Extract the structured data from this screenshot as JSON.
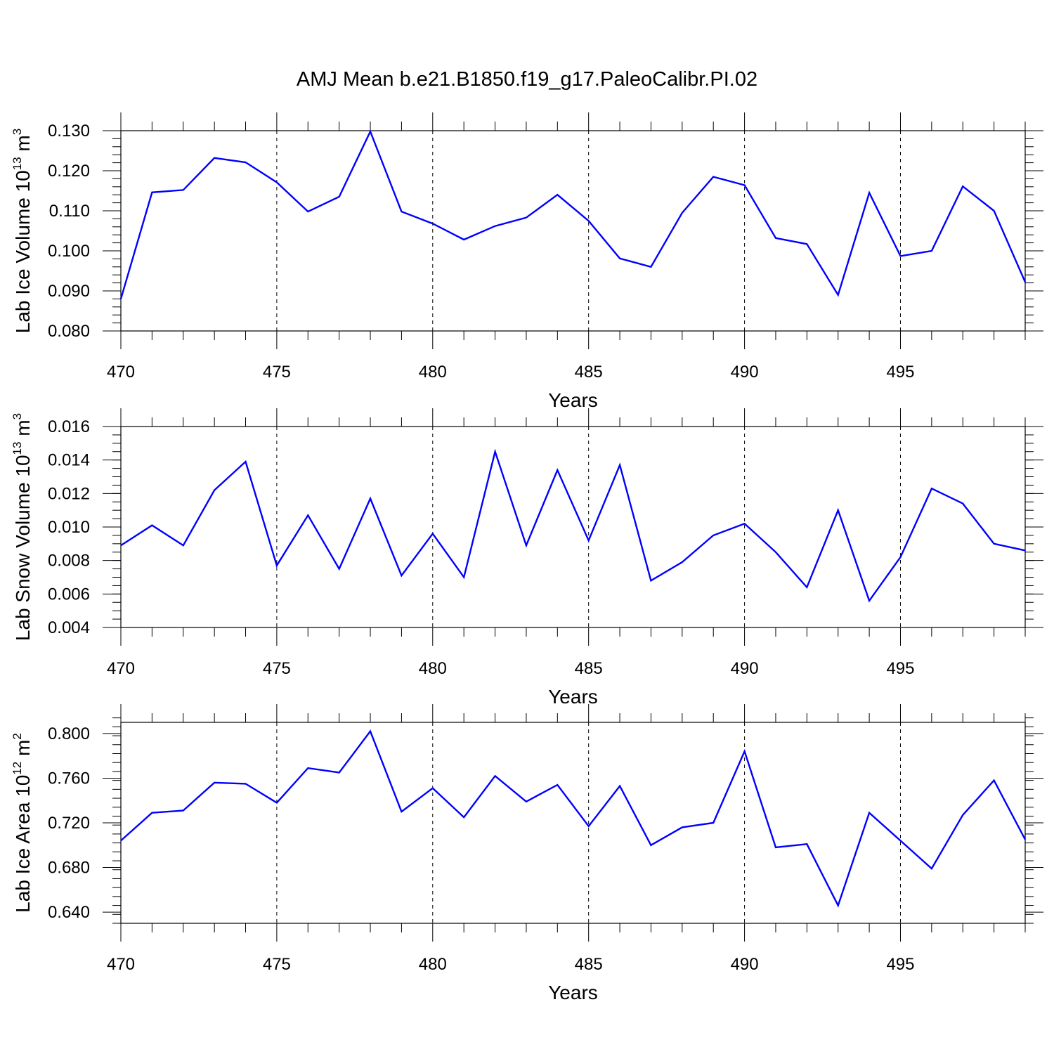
{
  "figure": {
    "title": "AMJ Mean b.e21.B1850.f19_g17.PaleoCalibr.PI.02"
  },
  "chart_data": [
    {
      "type": "line",
      "title": "AMJ Mean b.e21.B1850.f19_g17.PaleoCalibr.PI.02",
      "xlabel": "Years",
      "ylabel": {
        "main": "Lab Ice Volume 10",
        "exp": "13",
        "unit": " m",
        "unit_exp": "3"
      },
      "xlim": [
        470,
        499
      ],
      "ylim": [
        0.08,
        0.13
      ],
      "xticks": [
        470,
        475,
        480,
        485,
        490,
        495
      ],
      "xtick_labels": [
        "470",
        "475",
        "480",
        "485",
        "490",
        "495"
      ],
      "yticks": [
        0.08,
        0.09,
        0.1,
        0.11,
        0.12,
        0.13
      ],
      "ytick_labels": [
        "0.080",
        "0.090",
        "0.100",
        "0.110",
        "0.120",
        "0.130"
      ],
      "y_minor_step": 0.002,
      "line_color": "#0000ff",
      "grid": "vertical dashed at major x ticks",
      "x": [
        470,
        471,
        472,
        473,
        474,
        475,
        476,
        477,
        478,
        479,
        480,
        481,
        482,
        483,
        484,
        485,
        486,
        487,
        488,
        489,
        490,
        491,
        492,
        493,
        494,
        495,
        496,
        497,
        498,
        499
      ],
      "series": [
        {
          "values": [
            0.088,
            0.1146,
            0.1152,
            0.1232,
            0.1221,
            0.1171,
            0.1098,
            0.1135,
            0.1298,
            0.1098,
            0.1068,
            0.1028,
            0.1062,
            0.1083,
            0.114,
            0.1075,
            0.0981,
            0.096,
            0.1095,
            0.1185,
            0.1164,
            0.1032,
            0.1017,
            0.089,
            0.1145,
            0.0987,
            0.1,
            0.1161,
            0.11,
            0.0922
          ]
        }
      ]
    },
    {
      "type": "line",
      "xlabel": "Years",
      "ylabel": {
        "main": "Lab Snow Volume 10",
        "exp": "13",
        "unit": " m",
        "unit_exp": "3"
      },
      "xlim": [
        470,
        499
      ],
      "ylim": [
        0.004,
        0.016
      ],
      "xticks": [
        470,
        475,
        480,
        485,
        490,
        495
      ],
      "xtick_labels": [
        "470",
        "475",
        "480",
        "485",
        "490",
        "495"
      ],
      "yticks": [
        0.004,
        0.006,
        0.008,
        0.01,
        0.012,
        0.014,
        0.016
      ],
      "ytick_labels": [
        "0.004",
        "0.006",
        "0.008",
        "0.010",
        "0.012",
        "0.014",
        "0.016"
      ],
      "y_minor_step": 0.0005,
      "line_color": "#0000ff",
      "grid": "vertical dashed at major x ticks",
      "x": [
        470,
        471,
        472,
        473,
        474,
        475,
        476,
        477,
        478,
        479,
        480,
        481,
        482,
        483,
        484,
        485,
        486,
        487,
        488,
        489,
        490,
        491,
        492,
        493,
        494,
        495,
        496,
        497,
        498,
        499
      ],
      "series": [
        {
          "values": [
            0.0089,
            0.0101,
            0.0089,
            0.0122,
            0.0139,
            0.0077,
            0.0107,
            0.0075,
            0.0117,
            0.0071,
            0.0096,
            0.007,
            0.0145,
            0.0089,
            0.0134,
            0.0092,
            0.0137,
            0.0068,
            0.0079,
            0.0095,
            0.0102,
            0.0085,
            0.0064,
            0.011,
            0.0056,
            0.0082,
            0.0123,
            0.0114,
            0.009,
            0.0086
          ]
        }
      ]
    },
    {
      "type": "line",
      "xlabel": "Years",
      "ylabel": {
        "main": "Lab Ice Area 10",
        "exp": "12",
        "unit": " m",
        "unit_exp": "2"
      },
      "xlim": [
        470,
        499
      ],
      "ylim": [
        0.63,
        0.81
      ],
      "xticks": [
        470,
        475,
        480,
        485,
        490,
        495
      ],
      "xtick_labels": [
        "470",
        "475",
        "480",
        "485",
        "490",
        "495"
      ],
      "yticks": [
        0.64,
        0.68,
        0.72,
        0.76,
        0.8
      ],
      "ytick_labels": [
        "0.640",
        "0.680",
        "0.720",
        "0.760",
        "0.800"
      ],
      "y_minor_step": 0.008,
      "line_color": "#0000ff",
      "grid": "vertical dashed at major x ticks",
      "x": [
        470,
        471,
        472,
        473,
        474,
        475,
        476,
        477,
        478,
        479,
        480,
        481,
        482,
        483,
        484,
        485,
        486,
        487,
        488,
        489,
        490,
        491,
        492,
        493,
        494,
        495,
        496,
        497,
        498,
        499
      ],
      "series": [
        {
          "values": [
            0.704,
            0.729,
            0.731,
            0.756,
            0.755,
            0.738,
            0.769,
            0.765,
            0.802,
            0.73,
            0.751,
            0.725,
            0.762,
            0.739,
            0.754,
            0.717,
            0.753,
            0.7,
            0.716,
            0.72,
            0.784,
            0.698,
            0.701,
            0.646,
            0.729,
            0.704,
            0.679,
            0.727,
            0.758,
            0.705
          ]
        }
      ]
    }
  ]
}
